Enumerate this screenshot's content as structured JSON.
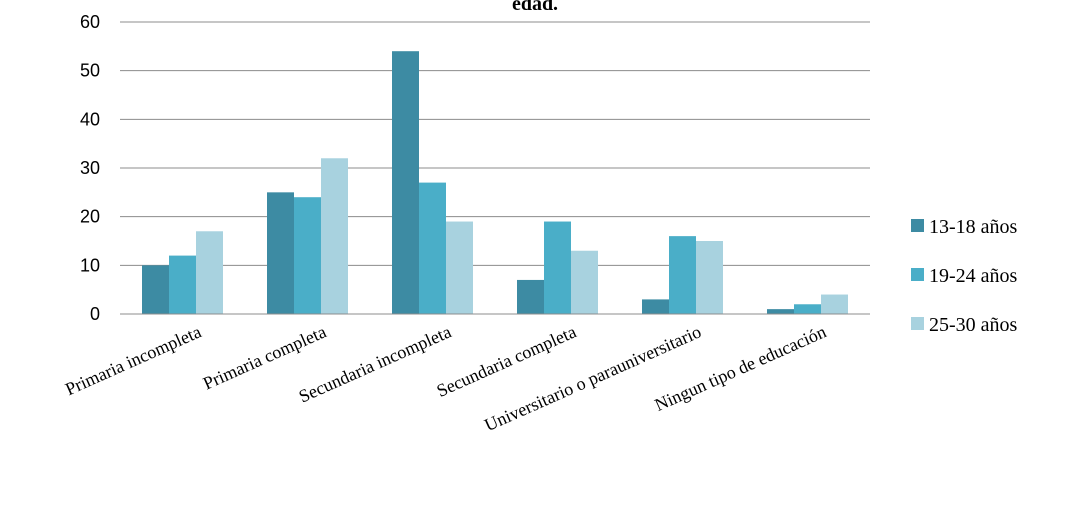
{
  "chart_data": {
    "type": "bar",
    "title": "edad.",
    "xlabel": "",
    "ylabel": "",
    "ylim": [
      0,
      60
    ],
    "yticks": [
      0,
      10,
      20,
      30,
      40,
      50,
      60
    ],
    "grid": true,
    "legend_position": "right",
    "categories": [
      "Primaria incompleta",
      "Primaria completa",
      "Secundaria incompleta",
      "Secundaria completa",
      "Universitario o parauniversitario",
      "Ningun tipo de educación"
    ],
    "series": [
      {
        "name": "13-18 años",
        "color": "#3d8ba3",
        "values": [
          10,
          25,
          54,
          7,
          3,
          1
        ]
      },
      {
        "name": "19-24 años",
        "color": "#4aaec8",
        "values": [
          12,
          24,
          27,
          19,
          16,
          2
        ]
      },
      {
        "name": "25-30 años",
        "color": "#a8d2df",
        "values": [
          17,
          32,
          19,
          13,
          15,
          4
        ]
      }
    ]
  }
}
